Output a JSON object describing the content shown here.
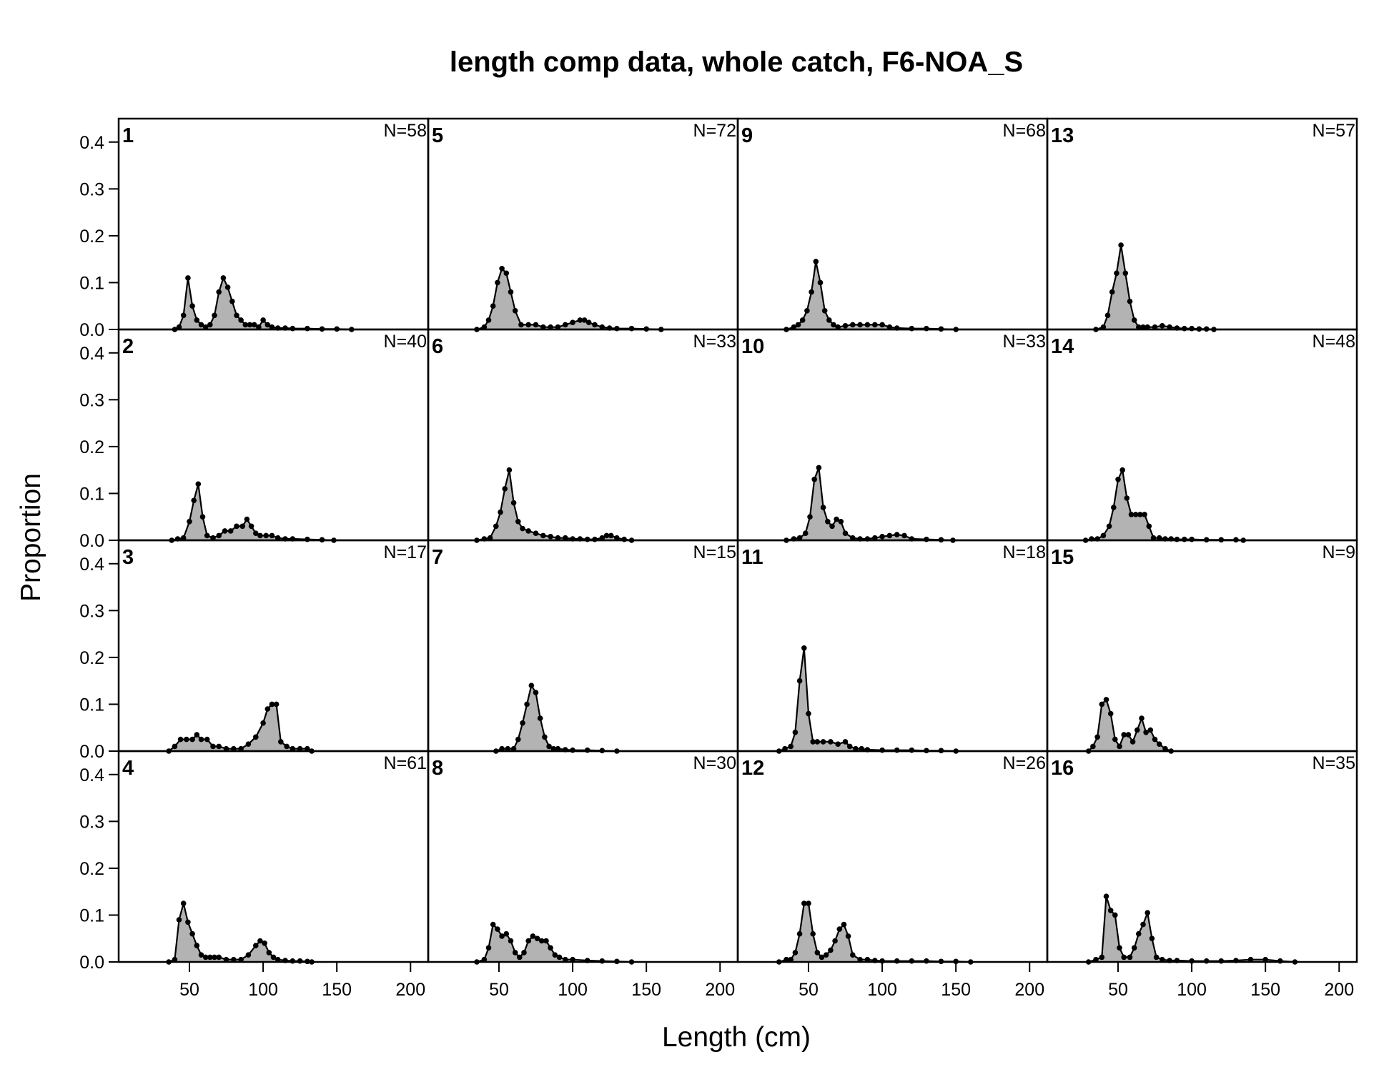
{
  "chart_data": {
    "type": "area",
    "title": "length comp data, whole catch, F6-NOA_S",
    "xlabel": "Length (cm)",
    "ylabel": "Proportion",
    "xlim": [
      2,
      212
    ],
    "ylim": [
      0,
      0.45
    ],
    "x_ticks": [
      "50",
      "100",
      "150",
      "200"
    ],
    "y_ticks": [
      "0.0",
      "0.1",
      "0.2",
      "0.3",
      "0.4"
    ],
    "layout": "4 x 4 panels, numbered down each column",
    "colors": {
      "fill": "#b3b3b3",
      "line": "#000000",
      "points": "#000000"
    },
    "panels": [
      {
        "id": "1",
        "n": "N=58",
        "x": [
          40,
          43,
          46,
          49,
          52,
          55,
          58,
          61,
          64,
          67,
          70,
          73,
          76,
          79,
          82,
          85,
          88,
          91,
          94,
          97,
          100,
          103,
          106,
          110,
          115,
          120,
          130,
          140,
          150,
          160
        ],
        "y": [
          0,
          0.005,
          0.03,
          0.11,
          0.05,
          0.02,
          0.01,
          0.005,
          0.01,
          0.03,
          0.08,
          0.11,
          0.09,
          0.06,
          0.03,
          0.02,
          0.01,
          0.01,
          0.01,
          0.005,
          0.02,
          0.01,
          0.005,
          0.003,
          0.003,
          0.002,
          0.002,
          0.001,
          0.001,
          0
        ]
      },
      {
        "id": "2",
        "n": "N=40",
        "x": [
          38,
          42,
          46,
          50,
          53,
          56,
          59,
          62,
          66,
          70,
          74,
          78,
          82,
          86,
          89,
          92,
          95,
          98,
          102,
          106,
          110,
          115,
          120,
          130,
          140,
          148
        ],
        "y": [
          0,
          0.003,
          0.005,
          0.04,
          0.085,
          0.12,
          0.05,
          0.01,
          0.005,
          0.01,
          0.02,
          0.02,
          0.03,
          0.03,
          0.045,
          0.03,
          0.015,
          0.01,
          0.01,
          0.01,
          0.005,
          0.003,
          0.003,
          0.002,
          0.001,
          0
        ]
      },
      {
        "id": "3",
        "n": "N=17",
        "x": [
          36,
          40,
          44,
          48,
          52,
          55,
          58,
          62,
          66,
          70,
          75,
          80,
          85,
          90,
          95,
          100,
          103,
          106,
          109,
          112,
          116,
          120,
          125,
          130,
          133
        ],
        "y": [
          0,
          0.01,
          0.025,
          0.025,
          0.025,
          0.035,
          0.025,
          0.025,
          0.01,
          0.01,
          0.005,
          0.005,
          0.005,
          0.015,
          0.03,
          0.06,
          0.09,
          0.1,
          0.1,
          0.02,
          0.01,
          0.005,
          0.005,
          0.005,
          0
        ]
      },
      {
        "id": "4",
        "n": "N=61",
        "x": [
          36,
          40,
          43,
          46,
          49,
          52,
          55,
          58,
          61,
          64,
          67,
          70,
          75,
          80,
          85,
          90,
          95,
          98,
          101,
          104,
          107,
          110,
          115,
          120,
          125,
          130,
          133
        ],
        "y": [
          0,
          0.005,
          0.09,
          0.125,
          0.085,
          0.06,
          0.035,
          0.015,
          0.01,
          0.01,
          0.01,
          0.01,
          0.005,
          0.005,
          0.005,
          0.015,
          0.035,
          0.045,
          0.04,
          0.02,
          0.01,
          0.005,
          0.003,
          0.002,
          0.002,
          0.001,
          0
        ]
      },
      {
        "id": "5",
        "n": "N=72",
        "x": [
          35,
          40,
          43,
          46,
          49,
          52,
          55,
          58,
          61,
          65,
          70,
          75,
          80,
          85,
          90,
          95,
          100,
          105,
          108,
          111,
          115,
          120,
          125,
          130,
          140,
          150,
          160
        ],
        "y": [
          0,
          0.005,
          0.02,
          0.05,
          0.1,
          0.13,
          0.12,
          0.08,
          0.04,
          0.01,
          0.01,
          0.01,
          0.005,
          0.005,
          0.005,
          0.01,
          0.015,
          0.02,
          0.02,
          0.015,
          0.01,
          0.005,
          0.003,
          0.002,
          0.002,
          0.001,
          0
        ]
      },
      {
        "id": "6",
        "n": "N=33",
        "x": [
          35,
          40,
          44,
          48,
          51,
          54,
          57,
          60,
          63,
          66,
          70,
          75,
          80,
          85,
          90,
          95,
          100,
          105,
          110,
          115,
          120,
          123,
          126,
          130,
          135,
          140
        ],
        "y": [
          0,
          0.003,
          0.005,
          0.03,
          0.06,
          0.11,
          0.15,
          0.08,
          0.04,
          0.025,
          0.02,
          0.015,
          0.01,
          0.008,
          0.005,
          0.005,
          0.003,
          0.003,
          0.002,
          0.002,
          0.005,
          0.01,
          0.01,
          0.005,
          0.002,
          0
        ]
      },
      {
        "id": "7",
        "n": "N=15",
        "x": [
          48,
          52,
          56,
          60,
          63,
          66,
          69,
          72,
          75,
          78,
          81,
          84,
          87,
          90,
          95,
          100,
          110,
          120,
          130
        ],
        "y": [
          0,
          0.005,
          0.005,
          0.005,
          0.025,
          0.06,
          0.1,
          0.14,
          0.125,
          0.07,
          0.03,
          0.01,
          0.005,
          0.005,
          0.003,
          0.002,
          0.002,
          0.001,
          0
        ]
      },
      {
        "id": "8",
        "n": "N=30",
        "x": [
          35,
          40,
          43,
          46,
          49,
          52,
          55,
          58,
          61,
          64,
          67,
          70,
          73,
          76,
          79,
          82,
          85,
          88,
          91,
          95,
          100,
          110,
          120,
          130,
          140
        ],
        "y": [
          0,
          0.005,
          0.03,
          0.08,
          0.07,
          0.055,
          0.06,
          0.045,
          0.02,
          0.01,
          0.02,
          0.045,
          0.055,
          0.05,
          0.045,
          0.045,
          0.03,
          0.015,
          0.01,
          0.005,
          0.005,
          0.003,
          0.002,
          0.001,
          0
        ]
      },
      {
        "id": "9",
        "n": "N=68",
        "x": [
          35,
          40,
          43,
          46,
          49,
          52,
          55,
          58,
          61,
          64,
          67,
          70,
          75,
          80,
          85,
          90,
          95,
          100,
          105,
          110,
          120,
          130,
          140,
          150
        ],
        "y": [
          0,
          0.005,
          0.01,
          0.02,
          0.04,
          0.08,
          0.145,
          0.1,
          0.04,
          0.02,
          0.01,
          0.005,
          0.008,
          0.01,
          0.01,
          0.01,
          0.01,
          0.01,
          0.005,
          0.003,
          0.002,
          0.002,
          0.001,
          0
        ]
      },
      {
        "id": "10",
        "n": "N=33",
        "x": [
          35,
          40,
          44,
          48,
          51,
          54,
          57,
          60,
          63,
          66,
          69,
          72,
          75,
          80,
          85,
          90,
          95,
          100,
          105,
          110,
          115,
          120,
          130,
          140,
          148
        ],
        "y": [
          0,
          0.003,
          0.005,
          0.015,
          0.05,
          0.13,
          0.155,
          0.07,
          0.04,
          0.03,
          0.045,
          0.04,
          0.015,
          0.005,
          0.003,
          0.003,
          0.005,
          0.008,
          0.01,
          0.012,
          0.01,
          0.003,
          0.002,
          0.001,
          0
        ]
      },
      {
        "id": "11",
        "n": "N=18",
        "x": [
          30,
          34,
          38,
          41,
          44,
          47,
          50,
          53,
          56,
          60,
          65,
          70,
          75,
          78,
          82,
          86,
          90,
          100,
          110,
          120,
          130,
          140,
          150
        ],
        "y": [
          0,
          0.005,
          0.01,
          0.04,
          0.15,
          0.22,
          0.08,
          0.02,
          0.02,
          0.02,
          0.02,
          0.015,
          0.02,
          0.01,
          0.005,
          0.005,
          0.003,
          0.002,
          0.002,
          0.002,
          0.001,
          0.001,
          0
        ]
      },
      {
        "id": "12",
        "n": "N=26",
        "x": [
          30,
          35,
          38,
          41,
          44,
          47,
          50,
          53,
          56,
          59,
          62,
          65,
          68,
          71,
          74,
          77,
          80,
          85,
          90,
          95,
          100,
          110,
          120,
          130,
          140,
          150,
          160
        ],
        "y": [
          0,
          0.005,
          0.005,
          0.02,
          0.06,
          0.125,
          0.125,
          0.06,
          0.02,
          0.01,
          0.015,
          0.025,
          0.045,
          0.07,
          0.08,
          0.055,
          0.015,
          0.005,
          0.005,
          0.003,
          0.002,
          0.002,
          0.002,
          0.002,
          0.001,
          0.001,
          0
        ]
      },
      {
        "id": "13",
        "n": "N=57",
        "x": [
          35,
          40,
          43,
          46,
          49,
          52,
          55,
          58,
          61,
          64,
          67,
          70,
          75,
          80,
          85,
          90,
          95,
          100,
          105,
          110,
          115
        ],
        "y": [
          0,
          0.005,
          0.03,
          0.08,
          0.12,
          0.18,
          0.12,
          0.06,
          0.02,
          0.005,
          0.005,
          0.005,
          0.005,
          0.008,
          0.005,
          0.003,
          0.002,
          0.002,
          0.001,
          0.001,
          0
        ]
      },
      {
        "id": "14",
        "n": "N=48",
        "x": [
          28,
          32,
          36,
          40,
          44,
          47,
          50,
          53,
          56,
          59,
          62,
          65,
          68,
          71,
          74,
          78,
          82,
          86,
          90,
          95,
          100,
          110,
          120,
          130,
          135
        ],
        "y": [
          0,
          0.003,
          0.003,
          0.01,
          0.03,
          0.07,
          0.13,
          0.15,
          0.09,
          0.055,
          0.055,
          0.055,
          0.055,
          0.03,
          0.005,
          0.005,
          0.003,
          0.003,
          0.002,
          0.002,
          0.002,
          0.001,
          0.001,
          0.001,
          0
        ]
      },
      {
        "id": "15",
        "n": "N=9",
        "x": [
          30,
          33,
          36,
          39,
          42,
          45,
          48,
          51,
          54,
          57,
          60,
          63,
          66,
          69,
          72,
          75,
          78,
          82,
          86
        ],
        "y": [
          0,
          0.01,
          0.03,
          0.1,
          0.11,
          0.08,
          0.025,
          0.01,
          0.035,
          0.035,
          0.02,
          0.045,
          0.07,
          0.04,
          0.045,
          0.025,
          0.015,
          0.005,
          0
        ]
      },
      {
        "id": "16",
        "n": "N=35",
        "x": [
          30,
          35,
          39,
          42,
          45,
          48,
          51,
          54,
          58,
          61,
          64,
          67,
          70,
          73,
          76,
          80,
          85,
          90,
          100,
          110,
          120,
          130,
          140,
          150,
          160,
          170
        ],
        "y": [
          0,
          0.005,
          0.01,
          0.14,
          0.11,
          0.1,
          0.03,
          0.01,
          0.01,
          0.03,
          0.06,
          0.08,
          0.105,
          0.05,
          0.01,
          0.005,
          0.003,
          0.003,
          0.002,
          0.002,
          0.002,
          0.003,
          0.005,
          0.005,
          0.002,
          0
        ]
      }
    ]
  }
}
